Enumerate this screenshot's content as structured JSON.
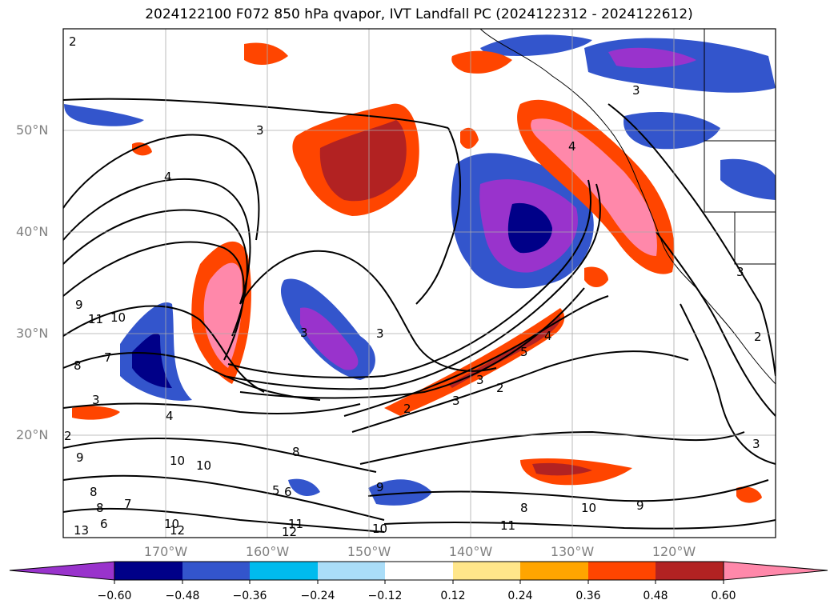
{
  "title": "2024122100 F072 850 hPa qvapor, IVT Landfall PC (2024122312 - 2024122612)",
  "lat_labels": [
    "50°N",
    "40°N",
    "30°N",
    "20°N"
  ],
  "lon_labels": [
    "170°W",
    "160°W",
    "150°W",
    "140°W",
    "130°W",
    "120°W"
  ],
  "colorbar": {
    "ticks": [
      "−0.60",
      "−0.48",
      "−0.36",
      "−0.24",
      "−0.12",
      "0.12",
      "0.24",
      "0.36",
      "0.48",
      "0.60"
    ],
    "colors": [
      "#9933cc",
      "#000088",
      "#3355cc",
      "#00bbee",
      "#aaddf8",
      "#ffffff",
      "#ffe68a",
      "#ffa500",
      "#ff4500",
      "#b22222",
      "#ff88aa"
    ]
  },
  "contour_labels": [
    "2",
    "3",
    "4",
    "4",
    "3",
    "2",
    "3",
    "9",
    "11",
    "10",
    "8",
    "7",
    "3",
    "4",
    "2",
    "6",
    "9",
    "10",
    "10",
    "8",
    "6",
    "5",
    "8",
    "9",
    "10",
    "11",
    "12",
    "13",
    "12",
    "11",
    "10",
    "9",
    "8",
    "3",
    "7",
    "8",
    "6",
    "10",
    "3",
    "2",
    "3",
    "3",
    "5",
    "4",
    "3",
    "2"
  ]
}
